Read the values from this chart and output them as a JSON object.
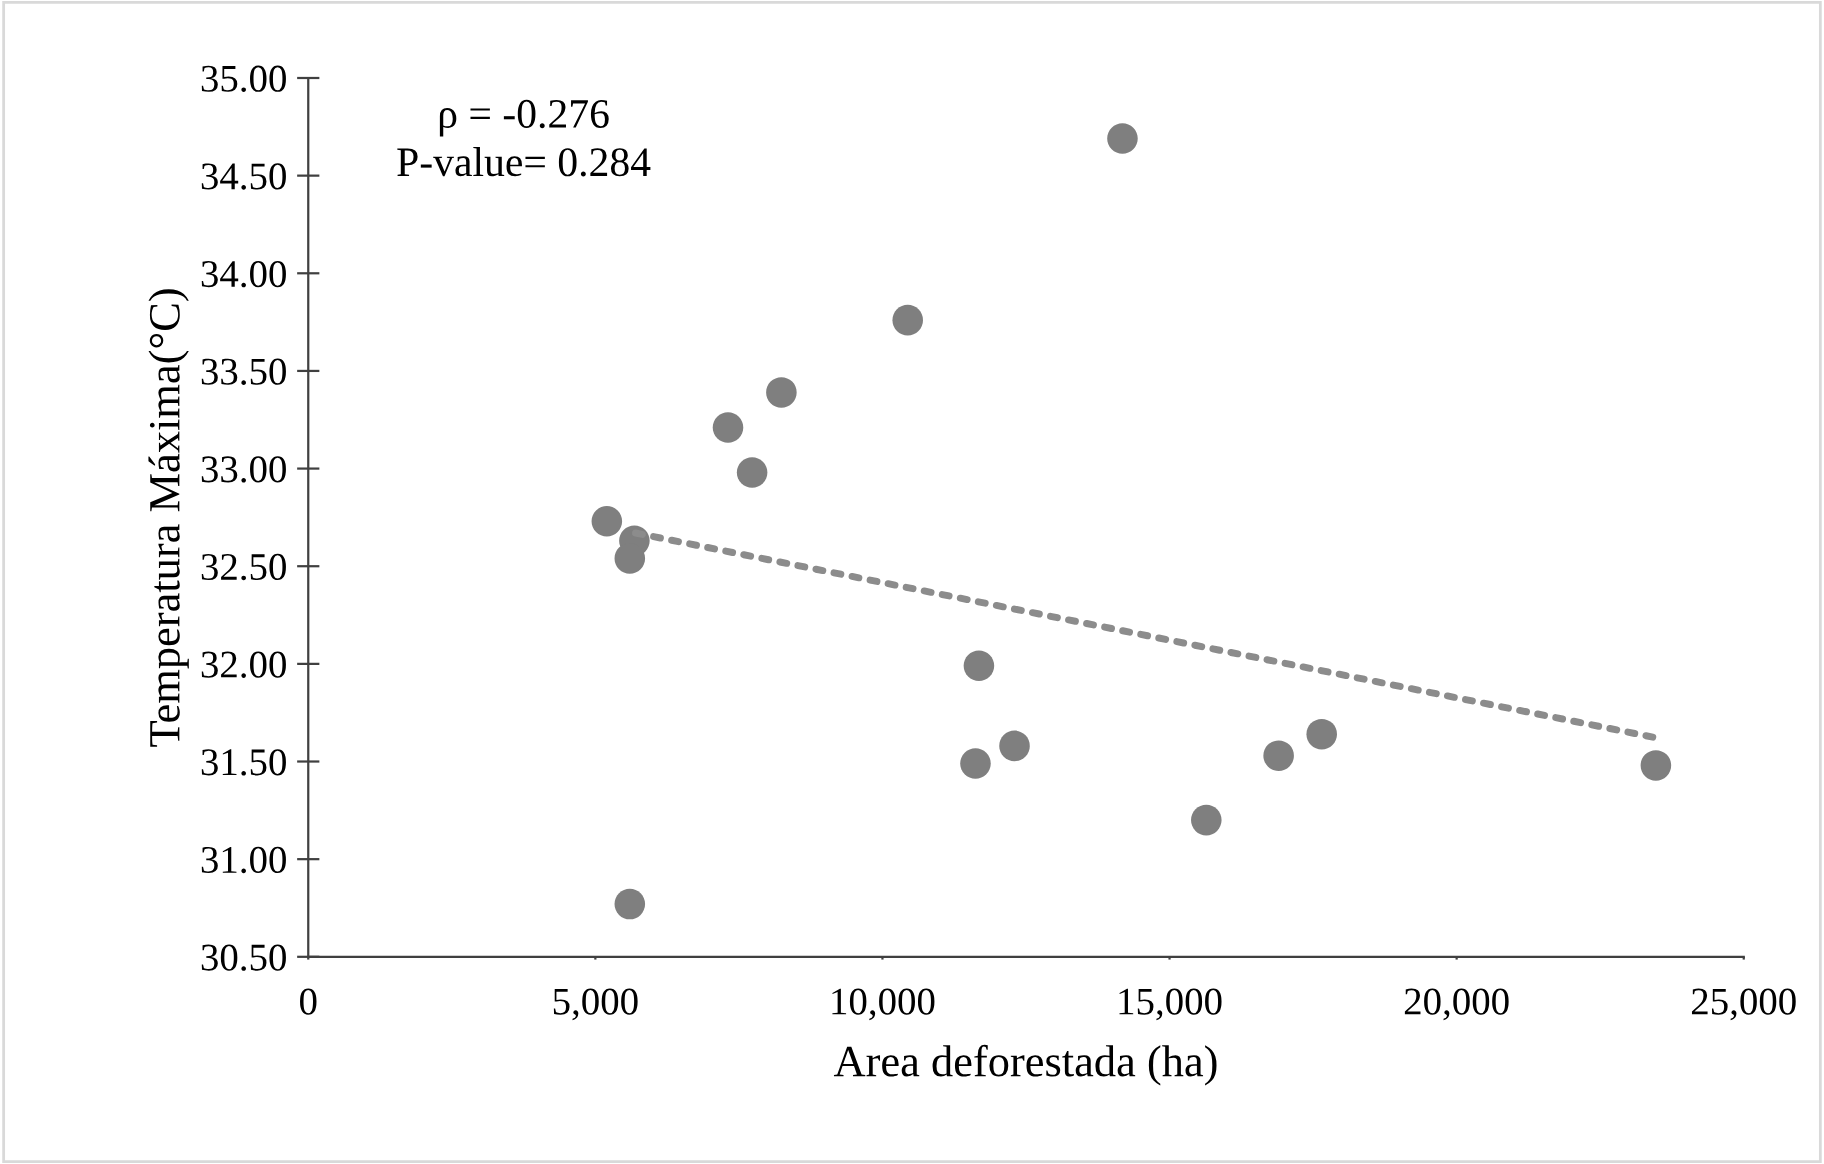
{
  "chart_data": {
    "type": "scatter",
    "xlabel": "Area deforestada (ha)",
    "ylabel": "Temperatura Máxima(°C)",
    "annotations": [
      "ρ = -0.276",
      "P-value= 0.284"
    ],
    "series": [
      {
        "color": "#7f7f7f",
        "marker": "circle",
        "x": [
          5200,
          5680,
          5600,
          7310,
          7730,
          8240,
          10440,
          11680,
          11620,
          12300,
          14180,
          16900,
          17650,
          15640,
          23470,
          5600
        ],
        "values": [
          32.73,
          32.63,
          32.54,
          33.21,
          32.98,
          33.39,
          33.76,
          31.99,
          31.49,
          31.58,
          34.69,
          31.53,
          31.64,
          31.2,
          31.48,
          30.77
        ]
      },
      {
        "type": "line",
        "color": "#8c8c8c",
        "line_style": "dotted",
        "x": [
          5700,
          23500
        ],
        "values": [
          32.67,
          31.62
        ]
      }
    ],
    "xlim": [
      0,
      25000
    ],
    "ylim": [
      30.5,
      35.0
    ],
    "xticks": [
      0,
      {
        "value": 5000,
        "label": "5,000"
      },
      {
        "value": 10000,
        "label": "10,000"
      },
      {
        "value": 15000,
        "label": "15,000"
      },
      {
        "value": 20000,
        "label": "20,000"
      },
      {
        "value": 25000,
        "label": "25,000"
      }
    ],
    "yticks": [
      {
        "value": 30.5,
        "label": "30.50"
      },
      {
        "value": 31.0,
        "label": "31.00"
      },
      {
        "value": 31.5,
        "label": "31.50"
      },
      {
        "value": 32.0,
        "label": "32.00"
      },
      {
        "value": 32.5,
        "label": "32.50"
      },
      {
        "value": 33.0,
        "label": "33.00"
      },
      {
        "value": 33.5,
        "label": "33.50"
      },
      {
        "value": 34.0,
        "label": "34.00"
      },
      {
        "value": 34.5,
        "label": "34.50"
      },
      {
        "value": 35.0,
        "label": "35.00"
      }
    ],
    "grid": false,
    "legend": false
  }
}
